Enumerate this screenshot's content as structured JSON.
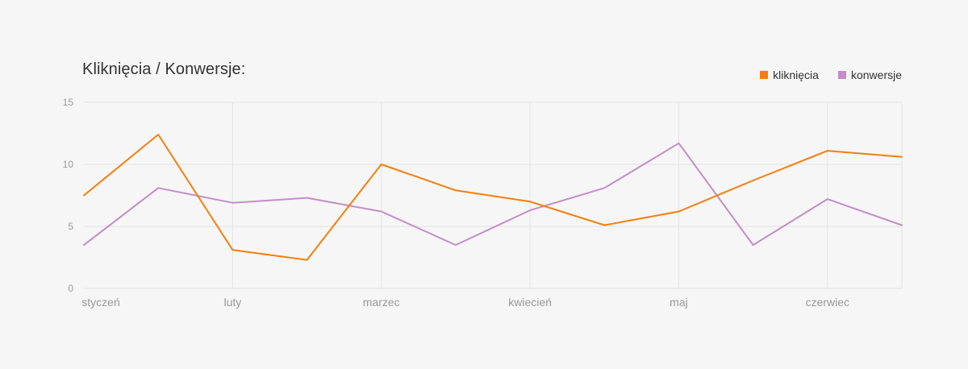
{
  "title": "Kliknięcia / Konwersje:",
  "colors": {
    "klikniecia": "#f77e0b",
    "konwersje": "#c38dc8",
    "grid": "#e3e3e3",
    "tick_text": "#999999"
  },
  "legend": [
    {
      "label": "kliknięcia",
      "color_key": "klikniecia"
    },
    {
      "label": "konwersje",
      "color_key": "konwersje"
    }
  ],
  "chart_data": {
    "type": "line",
    "title": "Kliknięcia / Konwersje:",
    "xlabel": "",
    "ylabel": "",
    "ylim": [
      0,
      15
    ],
    "y_ticks": [
      0,
      5,
      10,
      15
    ],
    "x_tick_labels": [
      "styczeń",
      "luty",
      "marzec",
      "kwiecień",
      "maj",
      "czerwiec"
    ],
    "x_points_count": 12,
    "x_tick_point_index": [
      0,
      2,
      4,
      6,
      8,
      10
    ],
    "grid": true,
    "legend_position": "top-right",
    "series": [
      {
        "name": "kliknięcia",
        "color_key": "klikniecia",
        "values": [
          7.5,
          12.4,
          3.1,
          2.3,
          10.0,
          7.9,
          7.0,
          5.1,
          6.2,
          8.7,
          11.1,
          10.6
        ]
      },
      {
        "name": "konwersje",
        "color_key": "konwersje",
        "values": [
          3.5,
          8.1,
          6.9,
          7.3,
          6.2,
          3.5,
          6.3,
          8.1,
          11.7,
          3.5,
          7.2,
          5.1
        ]
      }
    ]
  }
}
